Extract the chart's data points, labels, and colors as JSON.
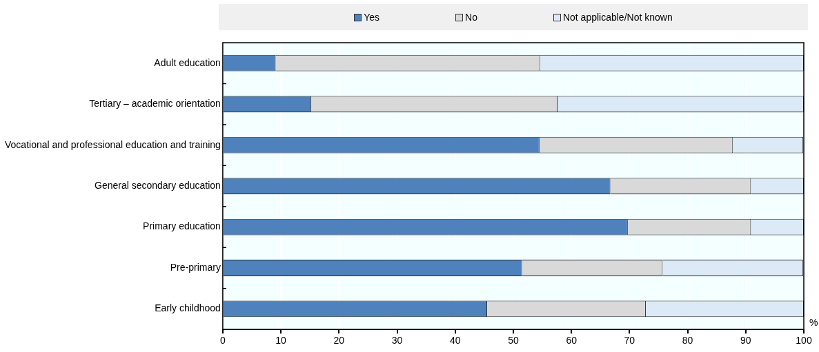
{
  "chart_data": {
    "type": "bar",
    "orientation": "horizontal",
    "stacked": true,
    "categories": [
      "Adult education",
      "Tertiary – academic orientation",
      "Vocational and professional education and training",
      "General secondary education",
      "Primary education",
      "Pre-primary",
      "Early childhood"
    ],
    "series": [
      {
        "name": "Yes",
        "color": "#4f81bd",
        "values": [
          9.1,
          15.2,
          54.5,
          66.7,
          69.7,
          51.5,
          45.5
        ]
      },
      {
        "name": "No",
        "color": "#d9d9d9",
        "values": [
          45.5,
          42.4,
          33.3,
          24.2,
          21.2,
          24.2,
          27.3
        ]
      },
      {
        "name": "Not applicable/Not known",
        "color": "#dce9f6",
        "values": [
          45.4,
          42.4,
          12.1,
          9.1,
          9.1,
          24.2,
          27.2
        ]
      }
    ],
    "xlabel": "%",
    "xlim": [
      0,
      100
    ],
    "xticks": [
      0,
      10,
      20,
      30,
      40,
      50,
      60,
      70,
      80,
      90,
      100
    ],
    "grid": "x",
    "legend": "top"
  }
}
